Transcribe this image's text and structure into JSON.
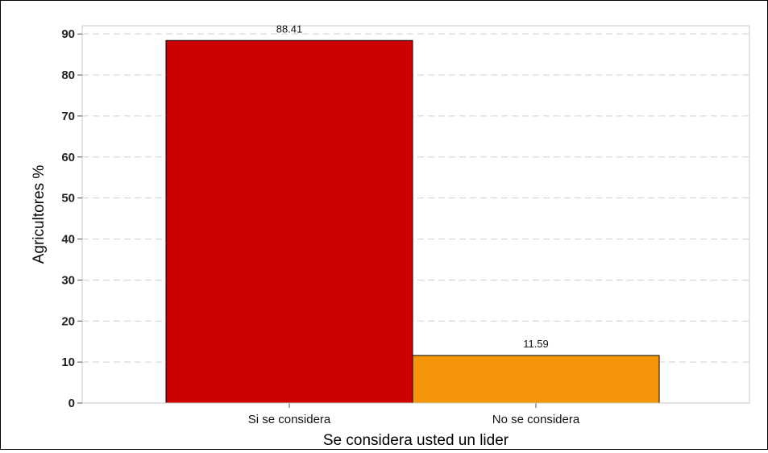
{
  "chart_data": {
    "type": "bar",
    "title": "",
    "xlabel": "Se considera usted un lider",
    "ylabel": "Agricultores %",
    "categories": [
      "Si se considera",
      "No se considera"
    ],
    "values": [
      88.41,
      11.59
    ],
    "value_labels": [
      "88.41",
      "11.59"
    ],
    "colors": [
      "#cc0000",
      "#f5960a"
    ],
    "ylim": [
      0,
      92
    ],
    "yticks": [
      0,
      10,
      20,
      30,
      40,
      50,
      60,
      70,
      80,
      90
    ],
    "grid": true,
    "legend": "none"
  }
}
